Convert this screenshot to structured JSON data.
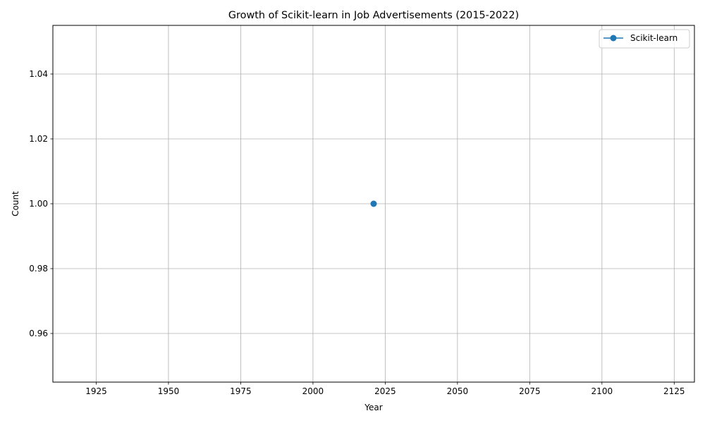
{
  "chart_data": {
    "type": "line",
    "title": "Growth of Scikit-learn in Job Advertisements (2015-2022)",
    "xlabel": "Year",
    "ylabel": "Count",
    "xlim": [
      1910,
      2132
    ],
    "ylim": [
      0.945,
      1.055
    ],
    "xticks": [
      1925,
      1950,
      1975,
      2000,
      2025,
      2050,
      2075,
      2100,
      2125
    ],
    "xtick_labels": [
      "1925",
      "1950",
      "1975",
      "2000",
      "2025",
      "2050",
      "2075",
      "2100",
      "2125"
    ],
    "yticks": [
      0.96,
      0.98,
      1.0,
      1.02,
      1.04
    ],
    "ytick_labels": [
      "0.96",
      "0.98",
      "1.00",
      "1.02",
      "1.04"
    ],
    "grid": true,
    "legend_position": "top-right",
    "series": [
      {
        "name": "Scikit-learn",
        "color": "#1f77b4",
        "marker": "circle",
        "x": [
          2021
        ],
        "y": [
          1.0
        ]
      }
    ]
  }
}
